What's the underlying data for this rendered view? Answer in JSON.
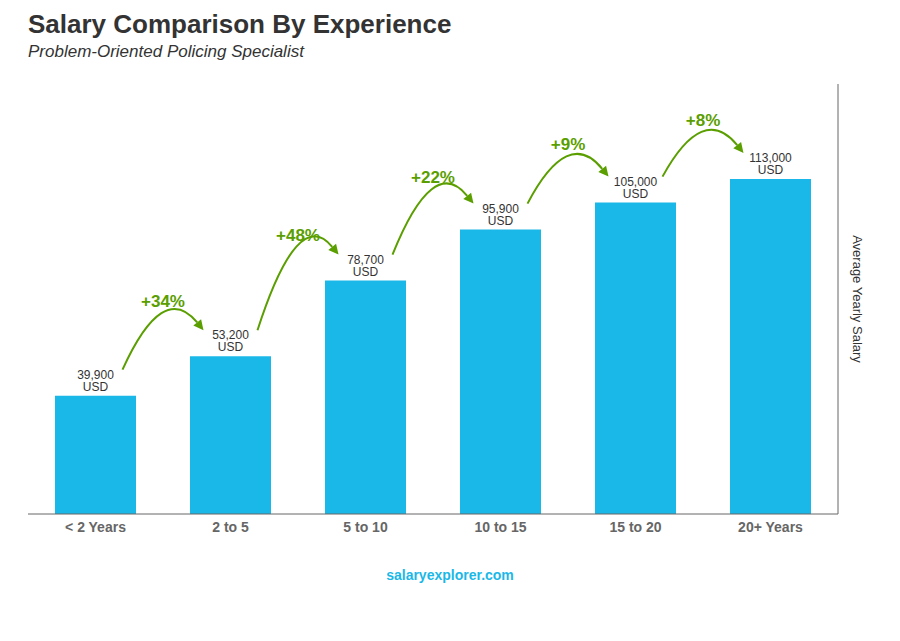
{
  "chart_data": {
    "type": "bar",
    "title": "Salary Comparison By Experience",
    "subtitle": "Problem-Oriented Policing Specialist",
    "ylabel": "Average Yearly Salary",
    "categories": [
      "< 2 Years",
      "2 to 5",
      "5 to 10",
      "10 to 15",
      "15 to 20",
      "20+ Years"
    ],
    "values": [
      39900,
      53200,
      78700,
      95900,
      105000,
      113000
    ],
    "value_labels": [
      "39,900 USD",
      "53,200 USD",
      "78,700 USD",
      "95,900 USD",
      "105,000 USD",
      "113,000 USD"
    ],
    "data_labels": true,
    "annotations": [
      "+34%",
      "+48%",
      "+22%",
      "+9%",
      "+8%"
    ],
    "watermark": "salaryexplorer.com",
    "color": "#1ab8e8",
    "ylim": [
      0,
      145000
    ],
    "grid": false,
    "tick_labels": "x"
  }
}
